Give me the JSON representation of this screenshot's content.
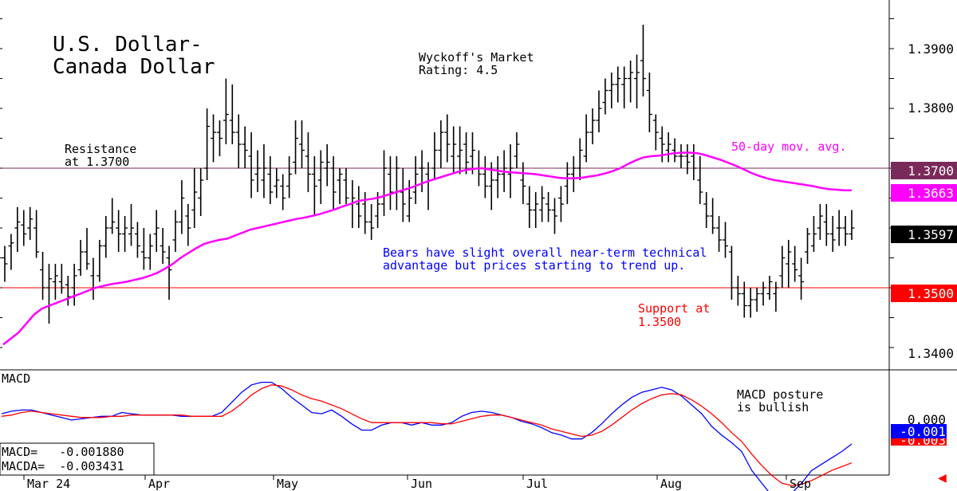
{
  "title_line1": "U.S. Dollar-",
  "title_line2": "Canada Dollar",
  "rating_line1": "Wyckoff's Market",
  "rating_line2": "Rating: 4.5",
  "resistance_line1": "Resistance",
  "resistance_line2": "at 1.3700",
  "support_line1": "Support at",
  "support_line2": "1.3500",
  "ma_note": "50-day mov. avg.",
  "comment_line1": "Bears have slight overall near-term technical",
  "comment_line2": "advantage but prices starting to trend up.",
  "macd_title": "MACD",
  "macd_note_line1": "MACD posture",
  "macd_note_line2": "is bullish",
  "macd_readout": "MACD=   -0.001880",
  "macda_readout": "MACDA=  -0.003431",
  "colors": {
    "price_bars": "#000000",
    "moving_average": "#ff00ff",
    "resistance": "#7a2a5a",
    "support": "#ff0000",
    "macd": "#0000ff",
    "macda": "#ff0000",
    "note_blue": "#0000ff",
    "badge_last": "#000000"
  },
  "chart_data": {
    "type": "bar",
    "price_axis": {
      "ylim": [
        1.335,
        1.395
      ],
      "ticks": [
        "1.3900",
        "1.3800",
        "1.3400"
      ]
    },
    "x_months": [
      "Mar 24",
      "Apr",
      "May",
      "Jun",
      "Jul",
      "Aug",
      "Sep"
    ],
    "price_badges": [
      {
        "label": "1.3700",
        "kind": "resistance"
      },
      {
        "label": "1.3663",
        "kind": "moving_average"
      },
      {
        "label": "1.3597",
        "kind": "last"
      },
      {
        "label": "1.3500",
        "kind": "support"
      }
    ],
    "horizontal_lines": {
      "resistance": 1.37,
      "support": 1.35
    },
    "ohlc": [
      [
        1.355,
        1.357,
        1.351,
        1.354
      ],
      [
        1.357,
        1.359,
        1.353,
        1.3575
      ],
      [
        1.36,
        1.3635,
        1.356,
        1.361
      ],
      [
        1.3605,
        1.363,
        1.357,
        1.359
      ],
      [
        1.36,
        1.3635,
        1.358,
        1.3615
      ],
      [
        1.36,
        1.363,
        1.355,
        1.356
      ],
      [
        1.353,
        1.356,
        1.348,
        1.35
      ],
      [
        1.35,
        1.354,
        1.344,
        1.3515
      ],
      [
        1.351,
        1.354,
        1.348,
        1.352
      ],
      [
        1.351,
        1.354,
        1.349,
        1.35
      ],
      [
        1.3505,
        1.352,
        1.347,
        1.3485
      ],
      [
        1.35,
        1.354,
        1.347,
        1.352
      ],
      [
        1.353,
        1.358,
        1.352,
        1.356
      ],
      [
        1.356,
        1.36,
        1.353,
        1.354
      ],
      [
        1.352,
        1.355,
        1.348,
        1.35
      ],
      [
        1.352,
        1.358,
        1.351,
        1.357
      ],
      [
        1.357,
        1.362,
        1.355,
        1.36
      ],
      [
        1.36,
        1.365,
        1.359,
        1.361
      ],
      [
        1.36,
        1.363,
        1.356,
        1.359
      ],
      [
        1.359,
        1.362,
        1.356,
        1.36
      ],
      [
        1.359,
        1.364,
        1.357,
        1.36
      ],
      [
        1.359,
        1.361,
        1.355,
        1.357
      ],
      [
        1.356,
        1.36,
        1.353,
        1.355
      ],
      [
        1.355,
        1.359,
        1.353,
        1.357
      ],
      [
        1.359,
        1.363,
        1.356,
        1.36
      ],
      [
        1.357,
        1.36,
        1.354,
        1.356
      ],
      [
        1.355,
        1.357,
        1.348,
        1.353
      ],
      [
        1.358,
        1.363,
        1.356,
        1.361
      ],
      [
        1.361,
        1.368,
        1.359,
        1.365
      ],
      [
        1.362,
        1.364,
        1.357,
        1.36
      ],
      [
        1.363,
        1.37,
        1.36,
        1.366
      ],
      [
        1.365,
        1.37,
        1.362,
        1.368
      ],
      [
        1.37,
        1.38,
        1.368,
        1.377
      ],
      [
        1.375,
        1.379,
        1.371,
        1.376
      ],
      [
        1.376,
        1.378,
        1.372,
        1.375
      ],
      [
        1.378,
        1.385,
        1.374,
        1.379
      ],
      [
        1.378,
        1.384,
        1.374,
        1.376
      ],
      [
        1.376,
        1.379,
        1.37,
        1.374
      ],
      [
        1.374,
        1.377,
        1.37,
        1.373
      ],
      [
        1.372,
        1.376,
        1.365,
        1.368
      ],
      [
        1.369,
        1.373,
        1.366,
        1.37
      ],
      [
        1.368,
        1.374,
        1.365,
        1.37
      ],
      [
        1.369,
        1.372,
        1.364,
        1.366
      ],
      [
        1.367,
        1.37,
        1.365,
        1.368
      ],
      [
        1.367,
        1.369,
        1.363,
        1.365
      ],
      [
        1.367,
        1.372,
        1.365,
        1.369
      ],
      [
        1.371,
        1.378,
        1.369,
        1.375
      ],
      [
        1.374,
        1.378,
        1.37,
        1.373
      ],
      [
        1.372,
        1.376,
        1.366,
        1.369
      ],
      [
        1.369,
        1.372,
        1.362,
        1.367
      ],
      [
        1.368,
        1.373,
        1.364,
        1.371
      ],
      [
        1.37,
        1.374,
        1.367,
        1.371
      ],
      [
        1.37,
        1.372,
        1.363,
        1.366
      ],
      [
        1.368,
        1.37,
        1.364,
        1.369
      ],
      [
        1.368,
        1.37,
        1.364,
        1.365
      ],
      [
        1.364,
        1.368,
        1.36,
        1.365
      ],
      [
        1.364,
        1.367,
        1.36,
        1.362
      ],
      [
        1.364,
        1.366,
        1.359,
        1.361
      ],
      [
        1.361,
        1.364,
        1.358,
        1.36
      ],
      [
        1.362,
        1.366,
        1.36,
        1.364
      ],
      [
        1.364,
        1.373,
        1.362,
        1.37
      ],
      [
        1.369,
        1.372,
        1.363,
        1.366
      ],
      [
        1.366,
        1.372,
        1.363,
        1.37
      ],
      [
        1.366,
        1.37,
        1.361,
        1.364
      ],
      [
        1.362,
        1.368,
        1.361,
        1.365
      ],
      [
        1.366,
        1.372,
        1.364,
        1.369
      ],
      [
        1.37,
        1.373,
        1.366,
        1.37
      ],
      [
        1.369,
        1.371,
        1.363,
        1.368
      ],
      [
        1.37,
        1.376,
        1.368,
        1.373
      ],
      [
        1.373,
        1.378,
        1.37,
        1.376
      ],
      [
        1.376,
        1.379,
        1.371,
        1.374
      ],
      [
        1.372,
        1.377,
        1.369,
        1.374
      ],
      [
        1.372,
        1.377,
        1.369,
        1.373
      ],
      [
        1.374,
        1.376,
        1.369,
        1.371
      ],
      [
        1.372,
        1.376,
        1.369,
        1.373
      ],
      [
        1.37,
        1.373,
        1.367,
        1.369
      ],
      [
        1.369,
        1.372,
        1.365,
        1.367
      ],
      [
        1.367,
        1.371,
        1.363,
        1.368
      ],
      [
        1.368,
        1.372,
        1.365,
        1.369
      ],
      [
        1.369,
        1.373,
        1.366,
        1.37
      ],
      [
        1.369,
        1.374,
        1.365,
        1.37
      ],
      [
        1.372,
        1.376,
        1.37,
        1.374
      ],
      [
        1.368,
        1.371,
        1.364,
        1.367
      ],
      [
        1.364,
        1.367,
        1.36,
        1.363
      ],
      [
        1.363,
        1.366,
        1.36,
        1.364
      ],
      [
        1.363,
        1.367,
        1.361,
        1.365
      ],
      [
        1.364,
        1.366,
        1.361,
        1.363
      ],
      [
        1.363,
        1.365,
        1.359,
        1.362
      ],
      [
        1.365,
        1.367,
        1.361,
        1.364
      ],
      [
        1.367,
        1.371,
        1.364,
        1.369
      ],
      [
        1.369,
        1.372,
        1.366,
        1.37
      ],
      [
        1.37,
        1.375,
        1.368,
        1.373
      ],
      [
        1.372,
        1.379,
        1.371,
        1.376
      ],
      [
        1.376,
        1.38,
        1.374,
        1.378
      ],
      [
        1.378,
        1.383,
        1.376,
        1.38
      ],
      [
        1.381,
        1.385,
        1.379,
        1.383
      ],
      [
        1.383,
        1.386,
        1.38,
        1.384
      ],
      [
        1.384,
        1.387,
        1.381,
        1.385
      ],
      [
        1.384,
        1.387,
        1.38,
        1.385
      ],
      [
        1.385,
        1.388,
        1.381,
        1.386
      ],
      [
        1.385,
        1.389,
        1.38,
        1.386
      ],
      [
        1.388,
        1.394,
        1.382,
        1.385
      ],
      [
        1.383,
        1.386,
        1.376,
        1.379
      ],
      [
        1.378,
        1.379,
        1.373,
        1.376
      ],
      [
        1.375,
        1.377,
        1.371,
        1.374
      ],
      [
        1.373,
        1.376,
        1.371,
        1.374
      ],
      [
        1.373,
        1.375,
        1.371,
        1.372
      ],
      [
        1.372,
        1.374,
        1.37,
        1.372
      ],
      [
        1.372,
        1.374,
        1.369,
        1.371
      ],
      [
        1.372,
        1.374,
        1.368,
        1.37
      ],
      [
        1.368,
        1.372,
        1.364,
        1.366
      ],
      [
        1.364,
        1.366,
        1.36,
        1.362
      ],
      [
        1.362,
        1.365,
        1.359,
        1.36
      ],
      [
        1.36,
        1.362,
        1.356,
        1.358
      ],
      [
        1.358,
        1.361,
        1.355,
        1.357
      ],
      [
        1.356,
        1.357,
        1.348,
        1.35
      ],
      [
        1.35,
        1.352,
        1.347,
        1.349
      ],
      [
        1.349,
        1.351,
        1.345,
        1.347
      ],
      [
        1.347,
        1.35,
        1.345,
        1.348
      ],
      [
        1.348,
        1.35,
        1.346,
        1.349
      ],
      [
        1.349,
        1.351,
        1.347,
        1.35
      ],
      [
        1.349,
        1.352,
        1.348,
        1.351
      ],
      [
        1.349,
        1.351,
        1.346,
        1.35
      ],
      [
        1.352,
        1.357,
        1.35,
        1.355
      ],
      [
        1.354,
        1.358,
        1.35,
        1.356
      ],
      [
        1.354,
        1.357,
        1.351,
        1.353
      ],
      [
        1.352,
        1.355,
        1.348,
        1.351
      ],
      [
        1.356,
        1.36,
        1.354,
        1.359
      ],
      [
        1.357,
        1.362,
        1.356,
        1.359
      ],
      [
        1.36,
        1.364,
        1.358,
        1.362
      ],
      [
        1.361,
        1.364,
        1.357,
        1.359
      ],
      [
        1.359,
        1.362,
        1.356,
        1.358
      ],
      [
        1.36,
        1.363,
        1.357,
        1.36
      ],
      [
        1.36,
        1.362,
        1.357,
        1.359
      ],
      [
        1.359,
        1.363,
        1.358,
        1.36
      ]
    ],
    "moving_average": [
      1.3405,
      1.3415,
      1.3425,
      1.344,
      1.3455,
      1.3465,
      1.347,
      1.3475,
      1.348,
      1.3485,
      1.349,
      1.3495,
      1.35,
      1.3503,
      1.3506,
      1.3508,
      1.351,
      1.3513,
      1.3516,
      1.352,
      1.3525,
      1.3532,
      1.354,
      1.355,
      1.3558,
      1.3566,
      1.3573,
      1.3577,
      1.358,
      1.3582,
      1.3587,
      1.3592,
      1.3597,
      1.36,
      1.3603,
      1.3606,
      1.3609,
      1.3612,
      1.3615,
      1.3617,
      1.362,
      1.3623,
      1.3627,
      1.3631,
      1.3636,
      1.364,
      1.3645,
      1.3647,
      1.3649,
      1.3652,
      1.3656,
      1.366,
      1.3664,
      1.3668,
      1.3673,
      1.3678,
      1.3682,
      1.3686,
      1.369,
      1.3694,
      1.3697,
      1.3699,
      1.37,
      1.3698,
      1.3696,
      1.3694,
      1.3693,
      1.3692,
      1.3691,
      1.369,
      1.3688,
      1.3686,
      1.3684,
      1.3683,
      1.3683,
      1.3684,
      1.3686,
      1.3688,
      1.3691,
      1.3695,
      1.37,
      1.3707,
      1.3713,
      1.3718,
      1.372,
      1.3721,
      1.3723,
      1.3725,
      1.3726,
      1.3726,
      1.3725,
      1.3722,
      1.3718,
      1.3714,
      1.3709,
      1.3704,
      1.3698,
      1.3692,
      1.3687,
      1.3683,
      1.368,
      1.3678,
      1.3676,
      1.3674,
      1.3672,
      1.367,
      1.3667,
      1.3665,
      1.3664,
      1.3663,
      1.3663
    ],
    "macd_panel": {
      "zero_label": "0.000",
      "badges": [
        "-0.001",
        "-0.003"
      ],
      "macd": [
        0.0005,
        0.0007,
        0.0008,
        0.0008,
        0.0006,
        0.0004,
        0.0002,
        0.0,
        0.0001,
        0.0002,
        0.0003,
        0.0003,
        0.0006,
        0.0005,
        0.0004,
        0.0004,
        0.0004,
        0.0004,
        0.0003,
        0.0003,
        0.0003,
        0.0003,
        0.0006,
        0.0014,
        0.0022,
        0.0028,
        0.003,
        0.003,
        0.0025,
        0.0018,
        0.0012,
        0.0006,
        0.0005,
        0.0008,
        0.0003,
        -0.0003,
        -0.0008,
        -0.0008,
        -0.0004,
        -0.0002,
        -0.0002,
        -0.0004,
        -0.0002,
        -0.0004,
        -0.0004,
        -0.0002,
        0.0003,
        0.0006,
        0.0007,
        0.0006,
        0.0004,
        0.0002,
        -0.0001,
        -0.0003,
        -0.0006,
        -0.001,
        -0.0012,
        -0.0015,
        -0.0015,
        -0.001,
        -0.0003,
        0.0005,
        0.0012,
        0.0018,
        0.0022,
        0.0024,
        0.0026,
        0.0024,
        0.0019,
        0.0012,
        0.0005,
        -0.0005,
        -0.0012,
        -0.0018,
        -0.0025,
        -0.004,
        -0.005,
        -0.006,
        -0.006,
        -0.0058,
        -0.005,
        -0.004,
        -0.0035,
        -0.003,
        -0.0025,
        -0.0019
      ],
      "macda": [
        0.0003,
        0.0004,
        0.0006,
        0.0007,
        0.0006,
        0.0005,
        0.0004,
        0.0003,
        0.0002,
        0.0002,
        0.0002,
        0.0003,
        0.0003,
        0.0004,
        0.0004,
        0.0004,
        0.0004,
        0.0004,
        0.0004,
        0.0003,
        0.0003,
        0.0003,
        0.0003,
        0.0007,
        0.0013,
        0.002,
        0.0025,
        0.0028,
        0.0027,
        0.0024,
        0.002,
        0.0017,
        0.0015,
        0.0012,
        0.0009,
        0.0005,
        0.0001,
        -0.0002,
        -0.0002,
        -0.0002,
        -0.0002,
        -0.0002,
        -0.0002,
        -0.0002,
        -0.0003,
        -0.0003,
        -0.0001,
        0.0001,
        0.0003,
        0.0004,
        0.0004,
        0.0002,
        0.0,
        -0.0002,
        -0.0004,
        -0.0007,
        -0.0009,
        -0.0011,
        -0.0013,
        -0.0012,
        -0.0009,
        -0.0004,
        0.0002,
        0.0008,
        0.0013,
        0.0017,
        0.002,
        0.0021,
        0.002,
        0.0016,
        0.0011,
        0.0005,
        -0.0002,
        -0.001,
        -0.0017,
        -0.0027,
        -0.0036,
        -0.0044,
        -0.005,
        -0.0052,
        -0.0051,
        -0.0048,
        -0.0044,
        -0.004,
        -0.0037,
        -0.0034
      ]
    }
  }
}
